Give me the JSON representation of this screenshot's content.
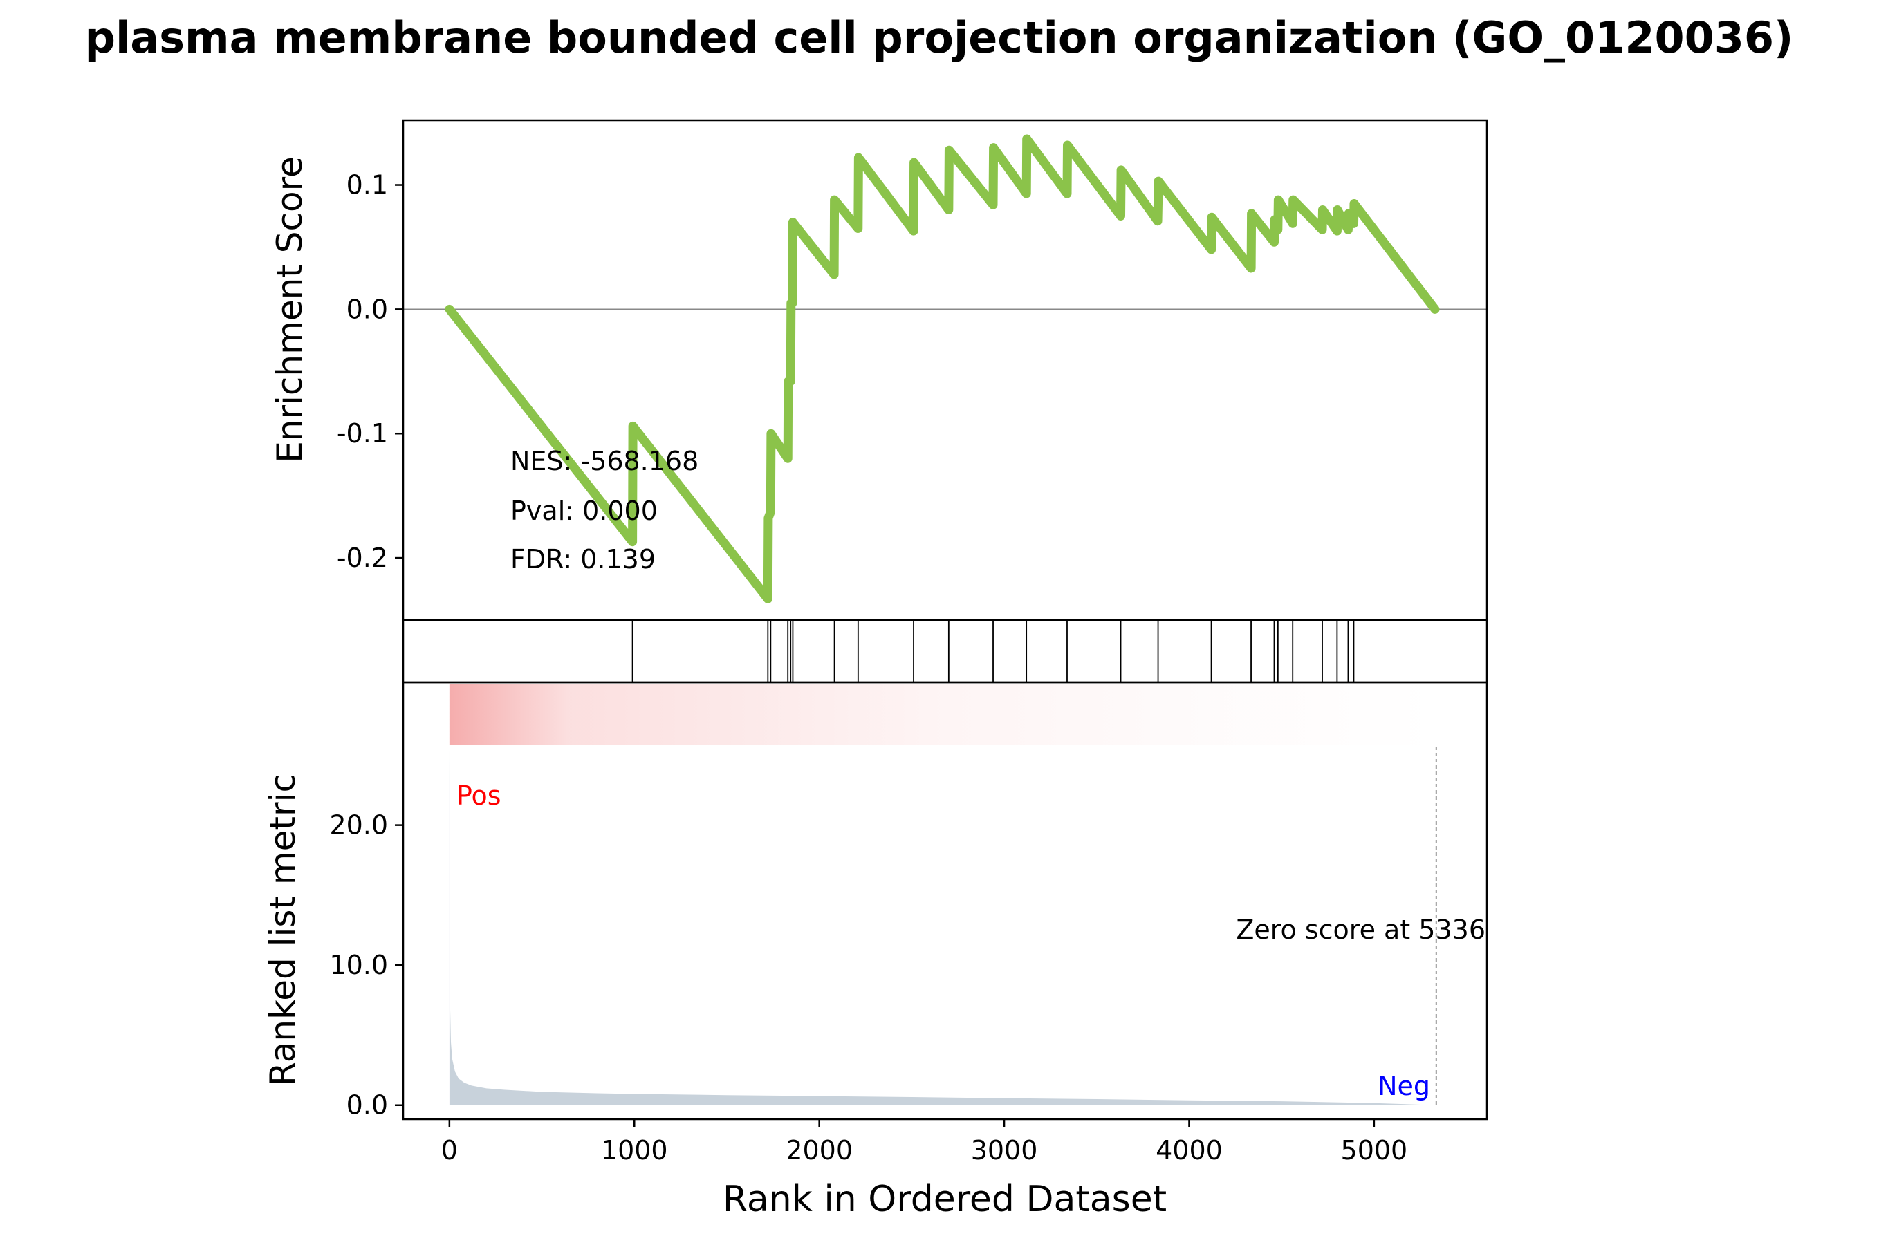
{
  "chart_data": {
    "type": "line",
    "title": "plasma membrane bounded cell projection organization (GO_0120036)",
    "top_panel": {
      "ylabel": "Enrichment Score",
      "ylim": [
        -0.25,
        0.152
      ],
      "yticks": [
        0.1,
        0.0,
        -0.1,
        -0.2
      ],
      "ytick_labels": [
        "0.1",
        "0.0",
        "-0.1",
        "-0.2"
      ],
      "zero_line": true,
      "line_color": "#8bc34a",
      "series": [
        {
          "x": [
            0,
            990,
            992,
            1722,
            1724,
            1737,
            1739,
            1830,
            1832,
            1845,
            1847,
            1855,
            1857,
            2080,
            2082,
            2210,
            2212,
            2510,
            2512,
            2700,
            2702,
            2940,
            2942,
            3120,
            3122,
            3340,
            3342,
            3630,
            3632,
            3830,
            3834,
            4120,
            4122,
            4335,
            4337,
            4460,
            4462,
            4480,
            4482,
            4560,
            4562,
            4720,
            4722,
            4800,
            4802,
            4860,
            4862,
            4890,
            4892,
            5330
          ],
          "y": [
            0,
            -0.187,
            -0.094,
            -0.233,
            -0.168,
            -0.163,
            -0.1,
            -0.12,
            -0.058,
            -0.058,
            0.005,
            0.005,
            0.07,
            0.028,
            0.088,
            0.065,
            0.122,
            0.063,
            0.118,
            0.08,
            0.128,
            0.084,
            0.13,
            0.093,
            0.137,
            0.093,
            0.132,
            0.075,
            0.112,
            0.071,
            0.103,
            0.048,
            0.074,
            0.033,
            0.077,
            0.054,
            0.072,
            0.064,
            0.088,
            0.069,
            0.088,
            0.064,
            0.08,
            0.063,
            0.08,
            0.064,
            0.077,
            0.069,
            0.085,
            0
          ]
        }
      ],
      "annotations": [
        {
          "label": "NES: -568.168"
        },
        {
          "label": "Pval: 0.000"
        },
        {
          "label": "FDR: 0.139"
        }
      ]
    },
    "hits_panel": {
      "hits": [
        990,
        1722,
        1737,
        1830,
        1845,
        1857,
        2082,
        2210,
        2510,
        2700,
        2940,
        3120,
        3340,
        3630,
        3832,
        4120,
        4335,
        4460,
        4480,
        4560,
        4720,
        4800,
        4860,
        4890
      ]
    },
    "heatmap": {
      "color": "#f08080",
      "x_start": 0,
      "x_end": 5336
    },
    "bottom_panel": {
      "ylabel": "Ranked list metric",
      "ylim": [
        -1.0,
        30.2
      ],
      "yticks": [
        0,
        10,
        20
      ],
      "ytick_labels": [
        "0.0",
        "10.0",
        "20.0"
      ],
      "fill_color": "#c8d2db",
      "curve": {
        "x": [
          0,
          3,
          8,
          15,
          30,
          50,
          80,
          120,
          200,
          300,
          500,
          800,
          1000,
          1500,
          2000,
          2500,
          3000,
          3500,
          4000,
          4500,
          5000,
          5336
        ],
        "y": [
          25.5,
          7.5,
          4.5,
          3.3,
          2.4,
          1.9,
          1.6,
          1.4,
          1.2,
          1.1,
          0.95,
          0.85,
          0.8,
          0.72,
          0.65,
          0.58,
          0.5,
          0.43,
          0.35,
          0.28,
          0.15,
          0.0
        ]
      },
      "zero_score_x": 5336,
      "zero_score_label": "Zero score at 5336",
      "pos_label": "Pos",
      "neg_label": "Neg",
      "pos_color": "#ff0000",
      "neg_color": "#0000ff"
    },
    "xlabel": "Rank in Ordered Dataset",
    "xlim": [
      -250,
      5610
    ],
    "xticks": [
      0,
      1000,
      2000,
      3000,
      4000,
      5000
    ],
    "xtick_labels": [
      "0",
      "1000",
      "2000",
      "3000",
      "4000",
      "5000"
    ]
  }
}
